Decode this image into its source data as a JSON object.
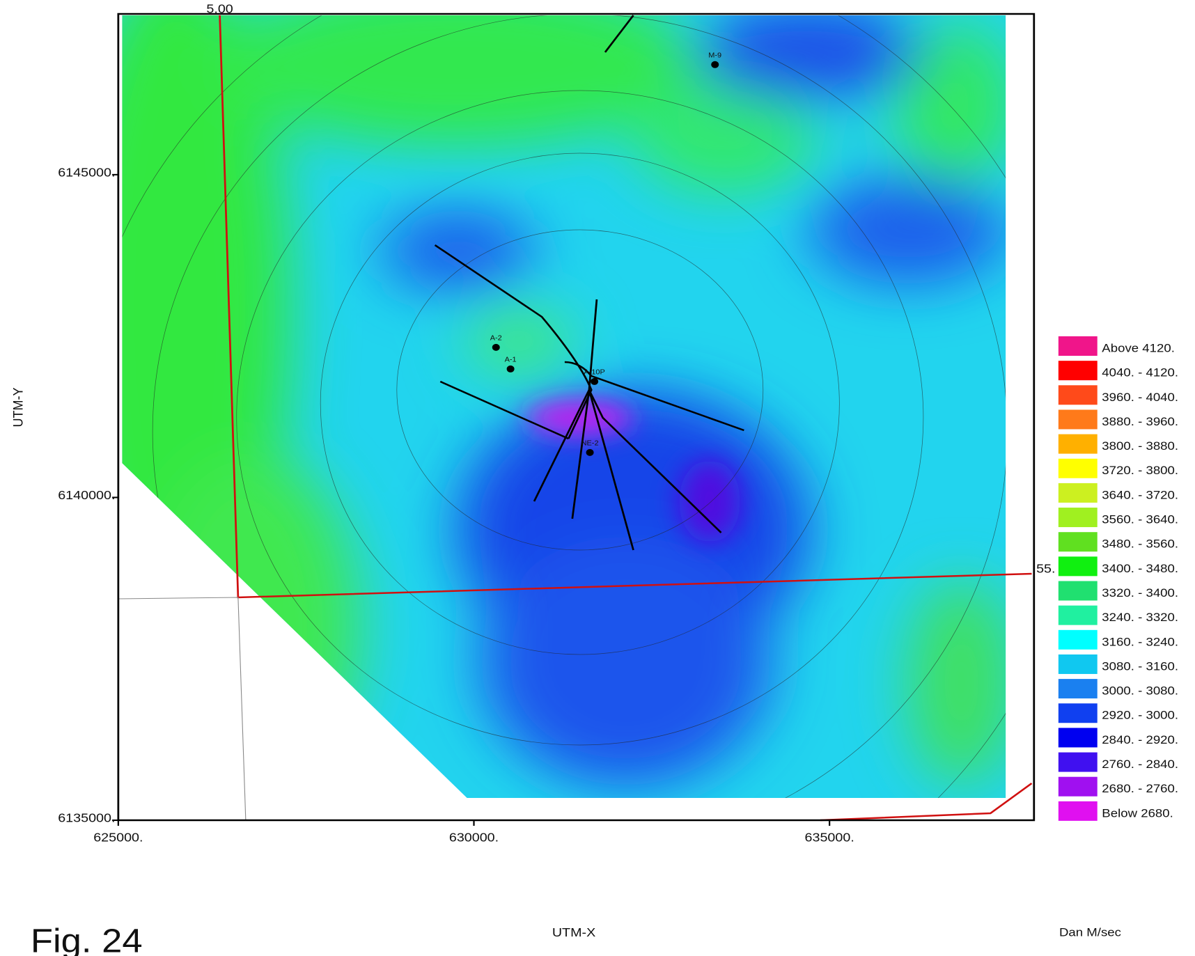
{
  "map": {
    "xlim": [
      625000,
      637875
    ],
    "ylim": [
      6135000,
      6147490
    ],
    "xticks": [
      {
        "value": 625000,
        "label": "625000."
      },
      {
        "value": 630000,
        "label": "630000."
      },
      {
        "value": 635000,
        "label": "635000."
      }
    ],
    "yticks": [
      {
        "value": 6135000,
        "label": "6135000."
      },
      {
        "value": 6140000,
        "label": "6140000."
      },
      {
        "value": 6145000,
        "label": "6145000."
      }
    ],
    "x_label": "UTM-X",
    "y_label": "UTM-Y",
    "line_labels": [
      "5.00",
      "55."
    ],
    "wells": [
      {
        "label": "M-9",
        "x": 633390,
        "y": 6146705
      },
      {
        "label": "A-2",
        "x": 630311,
        "y": 6142325
      },
      {
        "label": "A-1",
        "x": 630515,
        "y": 6141990
      },
      {
        "label": "A-10P",
        "x": 631695,
        "y": 6141796
      },
      {
        "label": "NE-2",
        "x": 631631,
        "y": 6140696
      }
    ],
    "legend": {
      "title": "Dan M/sec",
      "classes": [
        {
          "label": "Above 4120.",
          "color": "#f0158a"
        },
        {
          "label": "4040. - 4120.",
          "color": "#ff0000"
        },
        {
          "label": "3960. - 4040.",
          "color": "#ff4a1a"
        },
        {
          "label": "3880. - 3960.",
          "color": "#ff7a1a"
        },
        {
          "label": "3800. - 3880.",
          "color": "#ffb000"
        },
        {
          "label": "3720. - 3800.",
          "color": "#ffff00"
        },
        {
          "label": "3640. - 3720.",
          "color": "#ccf020"
        },
        {
          "label": "3560. - 3640.",
          "color": "#a0f020"
        },
        {
          "label": "3480. - 3560.",
          "color": "#60e020"
        },
        {
          "label": "3400. - 3480.",
          "color": "#10f010"
        },
        {
          "label": "3320. - 3400.",
          "color": "#20e070"
        },
        {
          "label": "3240. - 3320.",
          "color": "#20f0a0"
        },
        {
          "label": "3160. - 3240.",
          "color": "#00ffff"
        },
        {
          "label": "3080. - 3160.",
          "color": "#10c8f0"
        },
        {
          "label": "3000. - 3080.",
          "color": "#1a80f0"
        },
        {
          "label": "2920. - 3000.",
          "color": "#1040f0"
        },
        {
          "label": "2840. - 2920.",
          "color": "#0000f0"
        },
        {
          "label": "2760. - 2840.",
          "color": "#4010f0"
        },
        {
          "label": "2680. - 2760.",
          "color": "#a010f0"
        },
        {
          "label": "Below 2680.",
          "color": "#e010f0"
        }
      ]
    }
  },
  "figure_label": "Fig. 24"
}
